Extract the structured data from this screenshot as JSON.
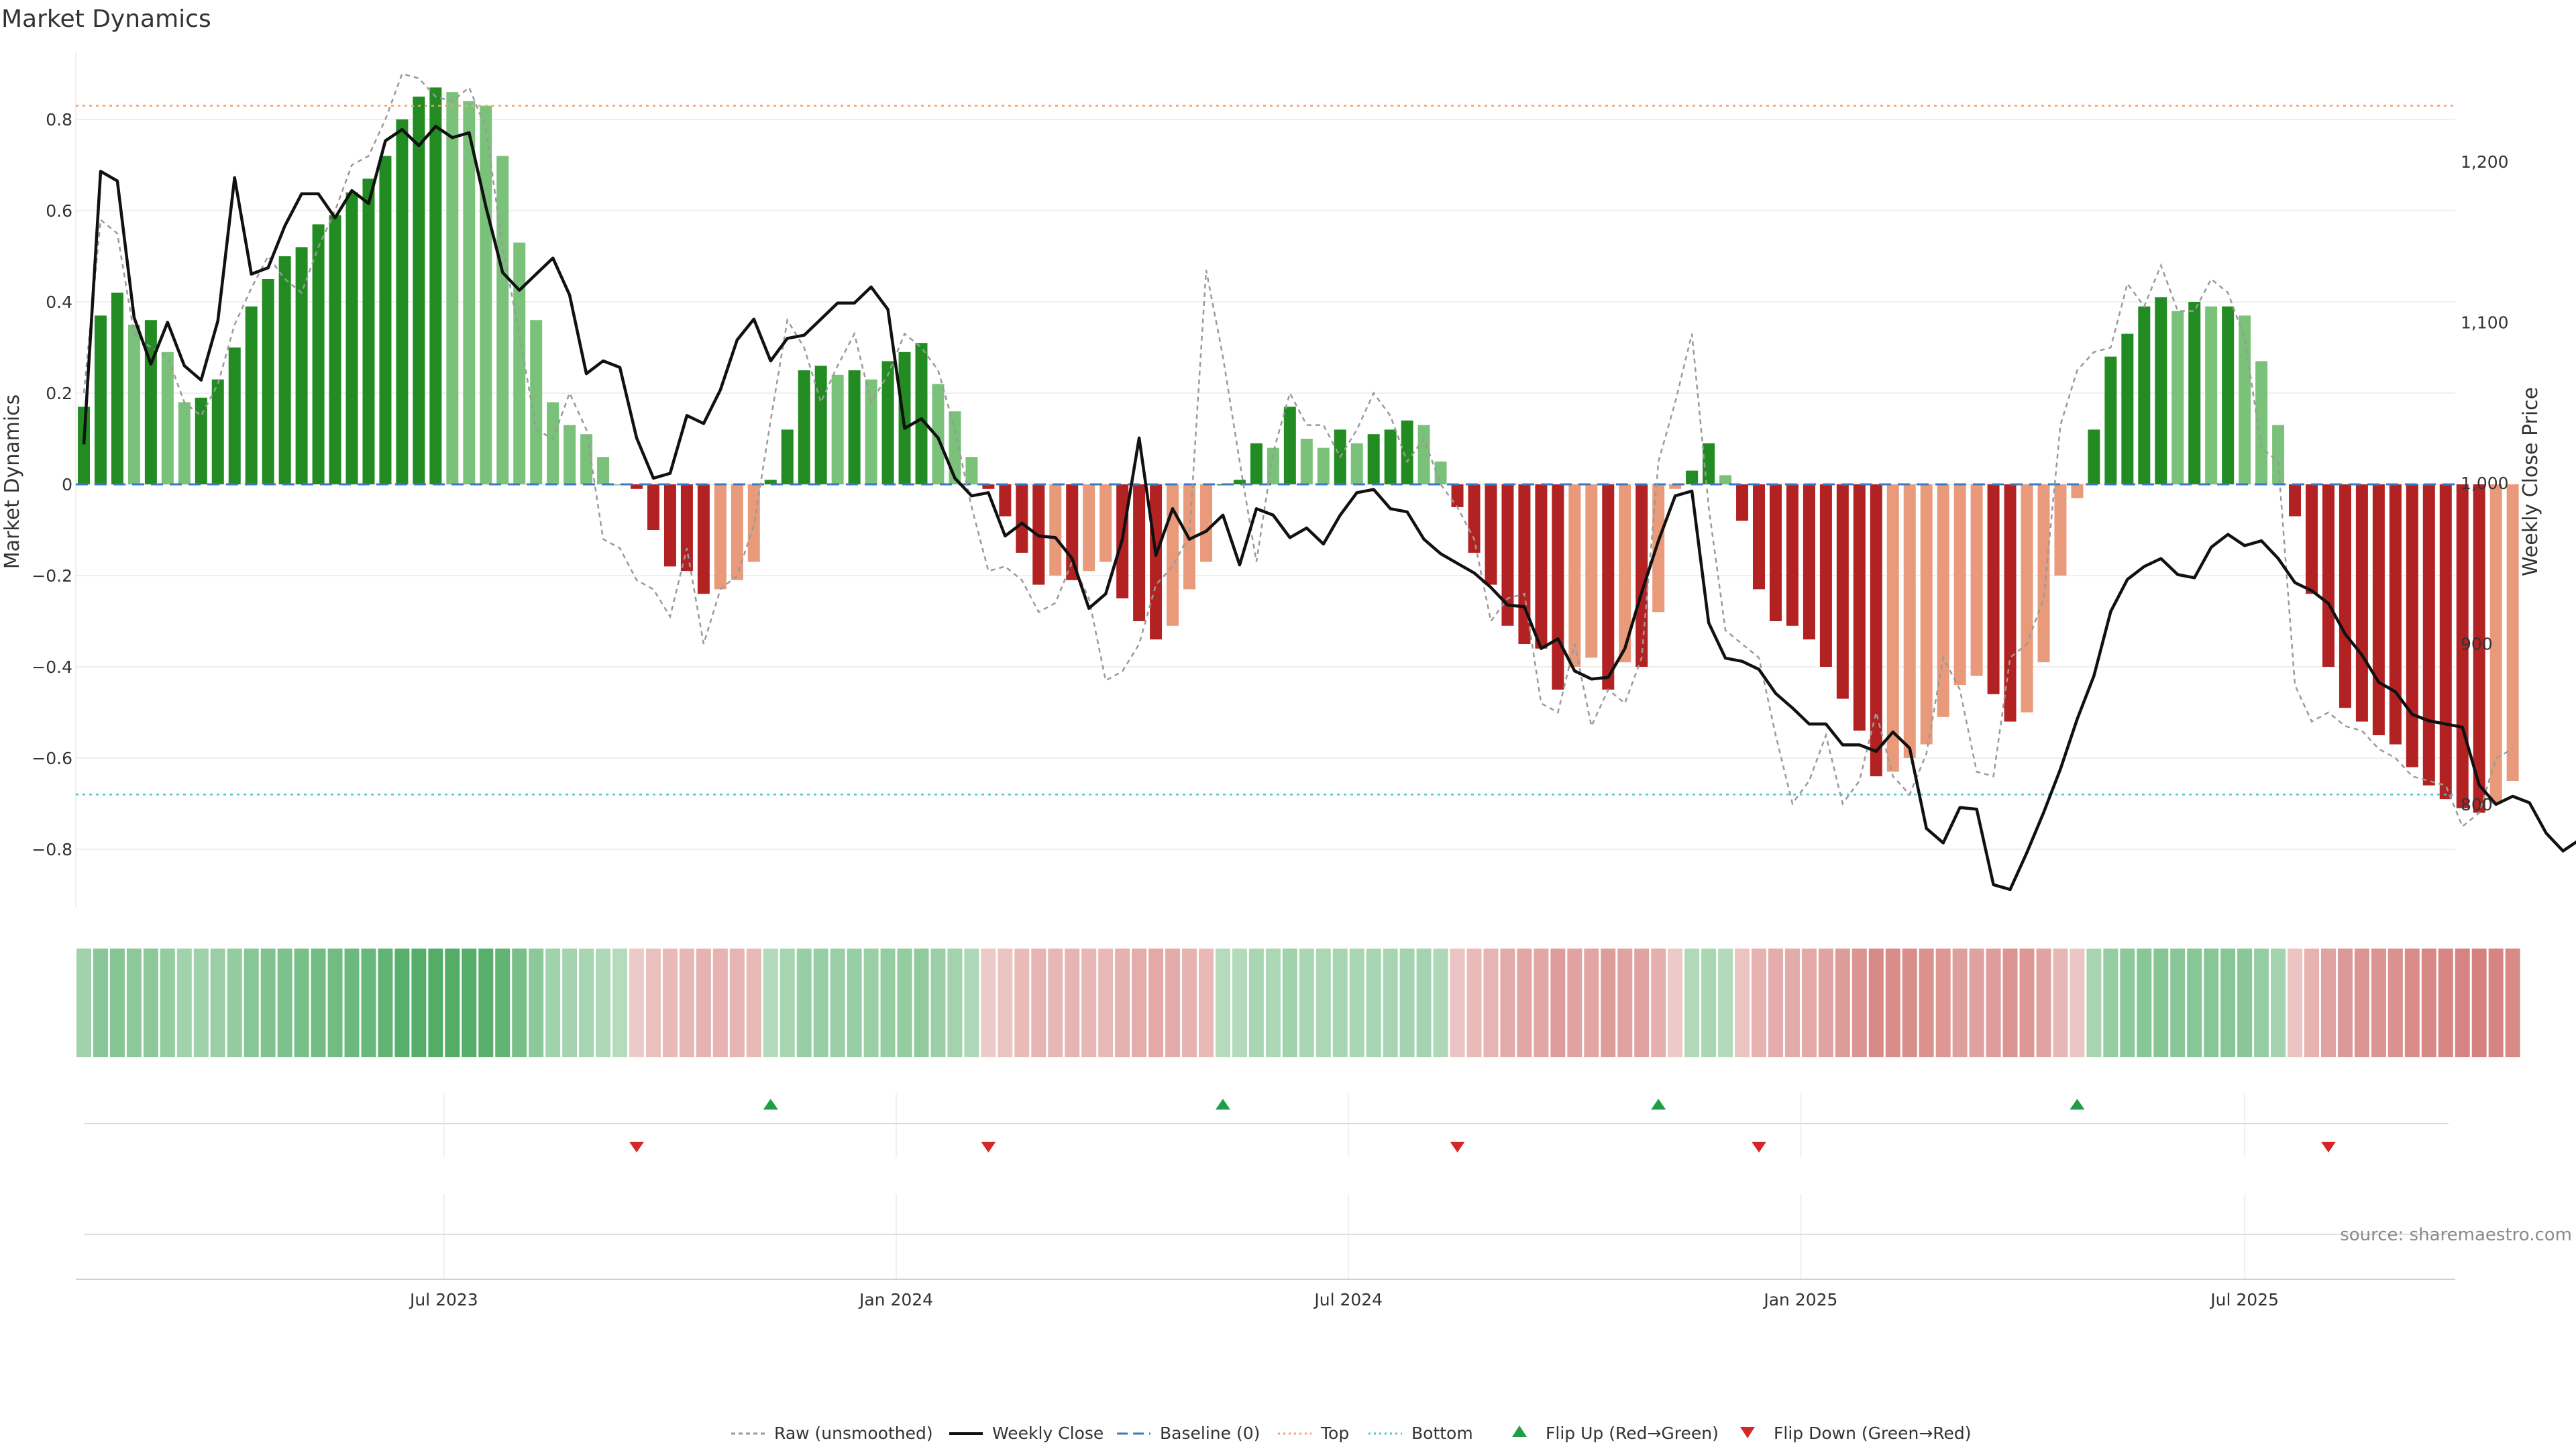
{
  "chart_data": {
    "type": "bar",
    "title": "Market Dynamics",
    "ylabel_left": "Market Dynamics",
    "ylabel_right": "Weekly Close Price",
    "ylim_left": [
      -0.95,
      0.95
    ],
    "ylim_right": [
      730,
      1270
    ],
    "left_ticks": [
      "0.8",
      "0.6",
      "0.4",
      "0.2",
      "0",
      "−0.2",
      "−0.4",
      "−0.6",
      "−0.8"
    ],
    "left_tick_values": [
      0.8,
      0.6,
      0.4,
      0.2,
      0,
      -0.2,
      -0.4,
      -0.6,
      -0.8
    ],
    "right_ticks": [
      "1,200",
      "1,100",
      "1,000",
      "900",
      "800"
    ],
    "right_tick_values": [
      1200,
      1100,
      1000,
      900,
      800
    ],
    "x_ticks": [
      "Jul 2023",
      "Jan 2024",
      "Jul 2024",
      "Jan 2025",
      "Jul 2025"
    ],
    "x_tick_weeks": [
      21.5,
      48.5,
      75.5,
      102.5,
      129
    ],
    "top_threshold": 0.83,
    "bottom_threshold": -0.68,
    "bars": [
      0.17,
      0.37,
      0.42,
      0.35,
      0.36,
      0.29,
      0.18,
      0.19,
      0.23,
      0.3,
      0.39,
      0.45,
      0.5,
      0.52,
      0.57,
      0.59,
      0.64,
      0.67,
      0.72,
      0.8,
      0.85,
      0.87,
      0.86,
      0.84,
      0.83,
      0.72,
      0.53,
      0.36,
      0.18,
      0.13,
      0.11,
      0.06,
      0.0,
      -0.01,
      -0.1,
      -0.18,
      -0.19,
      -0.24,
      -0.23,
      -0.21,
      -0.17,
      0.01,
      0.12,
      0.25,
      0.26,
      0.24,
      0.25,
      0.23,
      0.27,
      0.29,
      0.31,
      0.22,
      0.16,
      0.06,
      -0.01,
      -0.07,
      -0.15,
      -0.22,
      -0.2,
      -0.21,
      -0.19,
      -0.17,
      -0.25,
      -0.3,
      -0.34,
      -0.31,
      -0.23,
      -0.17,
      0.0,
      0.01,
      0.09,
      0.08,
      0.17,
      0.1,
      0.08,
      0.12,
      0.09,
      0.11,
      0.12,
      0.14,
      0.13,
      0.05,
      -0.05,
      -0.15,
      -0.22,
      -0.31,
      -0.35,
      -0.36,
      -0.45,
      -0.4,
      -0.38,
      -0.45,
      -0.39,
      -0.4,
      -0.28,
      -0.01,
      0.03,
      0.09,
      0.02,
      -0.08,
      -0.23,
      -0.3,
      -0.31,
      -0.34,
      -0.4,
      -0.47,
      -0.54,
      -0.64,
      -0.63,
      -0.6,
      -0.57,
      -0.51,
      -0.44,
      -0.42,
      -0.46,
      -0.52,
      -0.5,
      -0.39,
      -0.2,
      -0.03,
      0.12,
      0.28,
      0.33,
      0.39,
      0.41,
      0.38,
      0.4,
      0.39,
      0.39,
      0.37,
      0.27,
      0.13,
      -0.07,
      -0.24,
      -0.4,
      -0.49,
      -0.52,
      -0.55,
      -0.57,
      -0.62,
      -0.66,
      -0.69,
      -0.71,
      -0.72,
      -0.7,
      -0.65
    ],
    "raw": [
      0.2,
      0.58,
      0.55,
      0.33,
      0.3,
      0.28,
      0.18,
      0.15,
      0.22,
      0.35,
      0.43,
      0.5,
      0.45,
      0.42,
      0.52,
      0.6,
      0.7,
      0.72,
      0.8,
      0.9,
      0.89,
      0.85,
      0.84,
      0.87,
      0.78,
      0.52,
      0.33,
      0.12,
      0.1,
      0.2,
      0.12,
      -0.12,
      -0.14,
      -0.21,
      -0.23,
      -0.29,
      -0.14,
      -0.35,
      -0.23,
      -0.2,
      -0.09,
      0.14,
      0.36,
      0.3,
      0.18,
      0.26,
      0.33,
      0.18,
      0.24,
      0.33,
      0.3,
      0.25,
      0.12,
      -0.05,
      -0.19,
      -0.18,
      -0.21,
      -0.28,
      -0.26,
      -0.17,
      -0.25,
      -0.43,
      -0.41,
      -0.35,
      -0.22,
      -0.18,
      -0.11,
      0.47,
      0.28,
      0.05,
      -0.17,
      0.07,
      0.2,
      0.13,
      0.13,
      0.06,
      0.12,
      0.2,
      0.15,
      0.05,
      0.1,
      0.0,
      -0.05,
      -0.12,
      -0.3,
      -0.25,
      -0.24,
      -0.48,
      -0.5,
      -0.35,
      -0.53,
      -0.45,
      -0.48,
      -0.38,
      0.05,
      0.18,
      0.33,
      -0.05,
      -0.32,
      -0.35,
      -0.38,
      -0.55,
      -0.7,
      -0.65,
      -0.55,
      -0.7,
      -0.65,
      -0.5,
      -0.64,
      -0.68,
      -0.59,
      -0.38,
      -0.45,
      -0.63,
      -0.64,
      -0.38,
      -0.35,
      -0.25,
      0.13,
      0.25,
      0.29,
      0.3,
      0.44,
      0.39,
      0.48,
      0.38,
      0.38,
      0.45,
      0.42,
      0.32,
      0.08,
      0.05,
      -0.44,
      -0.52,
      -0.5,
      -0.53,
      -0.54,
      -0.58,
      -0.6,
      -0.64,
      -0.65,
      -0.66,
      -0.75,
      -0.72,
      -0.6,
      -0.58
    ],
    "close_price": [
      1024,
      1194,
      1188,
      1103,
      1074,
      1100,
      1073,
      1064,
      1101,
      1190,
      1130,
      1134,
      1160,
      1180,
      1180,
      1165,
      1182,
      1174,
      1213,
      1220,
      1210,
      1222,
      1215,
      1218,
      1172,
      1131,
      1120,
      1130,
      1140,
      1117,
      1068,
      1076,
      1072,
      1028,
      1003,
      1006,
      1042,
      1037,
      1058,
      1089,
      1102,
      1076,
      1090,
      1092,
      1102,
      1112,
      1112,
      1122,
      1108,
      1034,
      1040,
      1028,
      1003,
      992,
      994,
      967,
      975,
      967,
      966,
      953,
      922,
      931,
      965,
      1028,
      955,
      984,
      965,
      970,
      980,
      949,
      984,
      980,
      966,
      972,
      962,
      980,
      994,
      996,
      984,
      982,
      965,
      956,
      950,
      944,
      935,
      924,
      923,
      897,
      903,
      883,
      878,
      879,
      897,
      932,
      964,
      992,
      995,
      913,
      891,
      889,
      884,
      869,
      860,
      850,
      850,
      837,
      837,
      833,
      845,
      835,
      785,
      776,
      798,
      797,
      750,
      747,
      770,
      795,
      822,
      853,
      880,
      920,
      940,
      948,
      953,
      943,
      941,
      960,
      968,
      961,
      964,
      953,
      938,
      933,
      925,
      906,
      893,
      876,
      870,
      856,
      852,
      850,
      848,
      812,
      800,
      805,
      801,
      782,
      771,
      778
    ]
  },
  "flips": {
    "up_weeks": [
      41,
      68,
      94,
      119
    ],
    "down_weeks": [
      33,
      54,
      82,
      100,
      134
    ]
  },
  "legend": [
    {
      "label": "Raw (unsmoothed)",
      "kind": "dashed-gray"
    },
    {
      "label": "Weekly Close",
      "kind": "solid-black"
    },
    {
      "label": "Baseline (0)",
      "kind": "dashed-blue"
    },
    {
      "label": "Top",
      "kind": "dotted-orange"
    },
    {
      "label": "Bottom",
      "kind": "dotted-cyan"
    },
    {
      "label": "Flip Up (Red→Green)",
      "kind": "triangle-up"
    },
    {
      "label": "Flip Down (Green→Red)",
      "kind": "triangle-down"
    }
  ],
  "source_text": "source: sharemaestro.com",
  "colors": {
    "strong_green": "#228b22",
    "light_green": "#7ac27a",
    "strong_red": "#b22222",
    "light_red": "#e99a7a",
    "flip_up": "#1f9e47",
    "flip_down": "#d62728",
    "top_line": "#f4a070",
    "bottom_line": "#4fc3d0",
    "baseline": "#3b78c4"
  }
}
